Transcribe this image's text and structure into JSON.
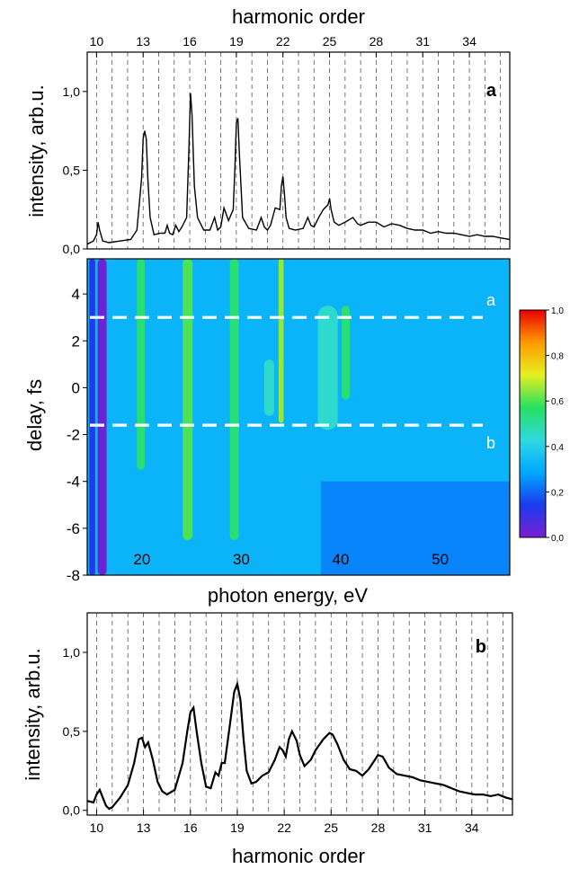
{
  "chart_data": [
    {
      "type": "line",
      "panel_label": "a",
      "xlabel": "harmonic order",
      "ylabel": "intensity, arb.u.",
      "xlim": [
        9.4,
        36.6
      ],
      "ylim": [
        0.0,
        1.25
      ],
      "x_ticks": [
        "10",
        "13",
        "16",
        "19",
        "22",
        "25",
        "28",
        "31",
        "34"
      ],
      "x_tick_values": [
        10,
        13,
        16,
        19,
        22,
        25,
        28,
        31,
        34
      ],
      "y_ticks": [
        "0,0",
        "0,5",
        "1,0"
      ],
      "y_tick_values": [
        0.0,
        0.5,
        1.0
      ],
      "harmonic_lines": [
        10,
        11,
        12,
        13,
        14,
        15,
        16,
        17,
        18,
        19,
        20,
        21,
        22,
        23,
        24,
        25,
        26,
        27,
        28,
        29,
        30,
        31,
        32,
        33,
        34,
        35,
        36
      ],
      "grid": "dashed vertical lines at harmonic orders",
      "series": [
        {
          "x": [
            9.4,
            9.8,
            10.0,
            10.1,
            10.2,
            10.4,
            10.8,
            11.5,
            12.2,
            12.6,
            12.9,
            13.0,
            13.1,
            13.2,
            13.3,
            13.45,
            13.7,
            14.1,
            14.4,
            14.55,
            14.7,
            14.9,
            15.1,
            15.3,
            15.5,
            15.8,
            15.95,
            16.05,
            16.15,
            16.3,
            16.5,
            16.9,
            17.3,
            17.6,
            17.8,
            18.0,
            18.2,
            18.5,
            18.8,
            18.9,
            19.0,
            19.1,
            19.2,
            19.4,
            19.8,
            20.3,
            20.6,
            20.8,
            21.0,
            21.2,
            21.5,
            21.8,
            21.9,
            22.0,
            22.1,
            22.2,
            22.4,
            22.8,
            23.3,
            23.6,
            23.8,
            24.0,
            24.3,
            24.6,
            24.9,
            25.0,
            25.1,
            25.3,
            25.6,
            26.0,
            26.5,
            26.8,
            27.0,
            27.5,
            28.0,
            28.5,
            29.0,
            29.5,
            30.0,
            30.5,
            31.0,
            31.5,
            32.0,
            32.5,
            33.0,
            33.5,
            34.0,
            34.5,
            35.0,
            35.5,
            36.0,
            36.6
          ],
          "y": [
            0.03,
            0.05,
            0.09,
            0.17,
            0.12,
            0.05,
            0.04,
            0.05,
            0.06,
            0.12,
            0.45,
            0.7,
            0.75,
            0.7,
            0.45,
            0.2,
            0.09,
            0.1,
            0.1,
            0.15,
            0.1,
            0.09,
            0.15,
            0.11,
            0.14,
            0.2,
            0.65,
            0.99,
            0.85,
            0.4,
            0.2,
            0.12,
            0.12,
            0.2,
            0.12,
            0.14,
            0.26,
            0.18,
            0.25,
            0.5,
            0.8,
            0.83,
            0.6,
            0.2,
            0.13,
            0.12,
            0.2,
            0.14,
            0.12,
            0.15,
            0.26,
            0.25,
            0.4,
            0.46,
            0.35,
            0.2,
            0.13,
            0.12,
            0.13,
            0.2,
            0.15,
            0.14,
            0.2,
            0.25,
            0.28,
            0.32,
            0.25,
            0.17,
            0.15,
            0.17,
            0.2,
            0.16,
            0.15,
            0.17,
            0.17,
            0.14,
            0.16,
            0.15,
            0.13,
            0.12,
            0.12,
            0.1,
            0.11,
            0.1,
            0.1,
            0.09,
            0.08,
            0.09,
            0.08,
            0.08,
            0.07,
            0.06
          ]
        }
      ]
    },
    {
      "type": "heatmap",
      "xlabel": "photon energy, eV",
      "ylabel": "delay, fs",
      "xlim": [
        14.5,
        57.0
      ],
      "ylim": [
        -8,
        5.5
      ],
      "x_tick_labels": [
        "20",
        "30",
        "40",
        "50"
      ],
      "x_tick_values": [
        20,
        30,
        40,
        50
      ],
      "y_ticks": [
        "4",
        "2",
        "0",
        "-2",
        "-4",
        "-6",
        "-8"
      ],
      "y_tick_values": [
        4,
        2,
        0,
        -2,
        -4,
        -6,
        -8
      ],
      "colorbar": {
        "range": [
          0.0,
          1.0
        ],
        "tick_labels": [
          "0,0",
          "0,2",
          "0,4",
          "0,6",
          "0,8",
          "1,0"
        ],
        "tick_values": [
          0.0,
          0.2,
          0.4,
          0.6,
          0.8,
          1.0
        ],
        "colors": [
          "#7a1fd0",
          "#1a3cf0",
          "#00a8ff",
          "#2fd9e0",
          "#27e060",
          "#e6f020",
          "#ff9a00",
          "#e80000"
        ]
      },
      "reference_lines": [
        {
          "label": "a",
          "delay": 3.0
        },
        {
          "label": "b",
          "delay": -1.6
        }
      ],
      "stripes": [
        {
          "energy": 16.0,
          "width": 0.9,
          "value": 0.02,
          "delay_range": [
            -8,
            5.5
          ]
        },
        {
          "energy": 15.0,
          "width": 0.6,
          "value": 0.12,
          "delay_range": [
            -8,
            5.5
          ]
        },
        {
          "energy": 19.9,
          "width": 0.55,
          "value": 0.9,
          "delay_range": [
            -2.5,
            5.5
          ]
        },
        {
          "energy": 19.9,
          "width": 0.8,
          "value": 0.55,
          "delay_range": [
            -3.5,
            5.5
          ]
        },
        {
          "energy": 24.6,
          "width": 0.6,
          "value": 0.95,
          "delay_range": [
            -3.5,
            5.5
          ]
        },
        {
          "energy": 24.6,
          "width": 1.0,
          "value": 0.6,
          "delay_range": [
            -6.5,
            5.5
          ]
        },
        {
          "energy": 29.3,
          "width": 0.55,
          "value": 0.95,
          "delay_range": [
            -4.5,
            5.5
          ]
        },
        {
          "energy": 29.3,
          "width": 0.9,
          "value": 0.55,
          "delay_range": [
            -6.5,
            5.5
          ]
        },
        {
          "energy": 34.0,
          "width": 0.5,
          "value": 0.65,
          "delay_range": [
            -1.5,
            5.5
          ]
        },
        {
          "energy": 32.8,
          "width": 1.0,
          "value": 0.45,
          "delay_range": [
            -1.2,
            1.2
          ]
        },
        {
          "energy": 38.7,
          "width": 2.0,
          "value": 0.45,
          "delay_range": [
            -1.8,
            3.5
          ]
        },
        {
          "energy": 40.5,
          "width": 0.8,
          "value": 0.55,
          "delay_range": [
            -0.5,
            3.5
          ]
        }
      ]
    },
    {
      "type": "line",
      "panel_label": "b",
      "xlabel": "harmonic order",
      "ylabel": "intensity, arb.u.",
      "xlim": [
        9.4,
        36.6
      ],
      "ylim": [
        -0.03,
        1.25
      ],
      "x_ticks": [
        "10",
        "13",
        "16",
        "19",
        "22",
        "25",
        "28",
        "31",
        "34"
      ],
      "x_tick_values": [
        10,
        13,
        16,
        19,
        22,
        25,
        28,
        31,
        34
      ],
      "y_ticks": [
        "0,0",
        "0,5",
        "1,0"
      ],
      "y_tick_values": [
        0.0,
        0.5,
        1.0
      ],
      "harmonic_lines": [
        10,
        11,
        12,
        13,
        14,
        15,
        16,
        17,
        18,
        19,
        20,
        21,
        22,
        23,
        24,
        25,
        26,
        27,
        28,
        29,
        30,
        31,
        32,
        33,
        34,
        35,
        36
      ],
      "grid": "dashed vertical lines at harmonic orders",
      "series": [
        {
          "x": [
            9.4,
            9.8,
            10.0,
            10.2,
            10.4,
            10.6,
            10.8,
            11.0,
            11.5,
            12.0,
            12.4,
            12.7,
            12.9,
            13.1,
            13.3,
            13.6,
            13.9,
            14.2,
            14.5,
            15.0,
            15.5,
            15.8,
            16.0,
            16.2,
            16.4,
            16.7,
            17.0,
            17.3,
            17.6,
            17.8,
            18.0,
            18.2,
            18.5,
            18.8,
            19.0,
            19.2,
            19.4,
            19.6,
            19.9,
            20.2,
            20.6,
            21.0,
            21.4,
            21.7,
            21.9,
            22.1,
            22.3,
            22.5,
            22.8,
            23.0,
            23.3,
            23.7,
            24.0,
            24.5,
            24.9,
            25.1,
            25.4,
            25.8,
            26.2,
            26.6,
            27.0,
            27.4,
            27.8,
            28.0,
            28.3,
            28.7,
            29.2,
            29.7,
            30.2,
            30.7,
            31.2,
            31.7,
            32.2,
            32.7,
            33.2,
            33.7,
            34.2,
            34.7,
            35.2,
            35.7,
            36.2,
            36.6
          ],
          "y": [
            0.06,
            0.05,
            0.1,
            0.13,
            0.08,
            0.03,
            0.01,
            0.02,
            0.08,
            0.16,
            0.3,
            0.45,
            0.46,
            0.4,
            0.43,
            0.32,
            0.18,
            0.12,
            0.1,
            0.13,
            0.3,
            0.5,
            0.62,
            0.65,
            0.5,
            0.3,
            0.15,
            0.14,
            0.24,
            0.22,
            0.3,
            0.3,
            0.52,
            0.75,
            0.8,
            0.7,
            0.45,
            0.25,
            0.17,
            0.18,
            0.22,
            0.24,
            0.32,
            0.4,
            0.38,
            0.34,
            0.45,
            0.5,
            0.44,
            0.35,
            0.28,
            0.32,
            0.38,
            0.45,
            0.49,
            0.48,
            0.42,
            0.32,
            0.26,
            0.25,
            0.22,
            0.26,
            0.32,
            0.35,
            0.34,
            0.27,
            0.23,
            0.22,
            0.21,
            0.19,
            0.18,
            0.17,
            0.16,
            0.14,
            0.12,
            0.11,
            0.1,
            0.1,
            0.09,
            0.1,
            0.08,
            0.07
          ]
        }
      ]
    }
  ]
}
